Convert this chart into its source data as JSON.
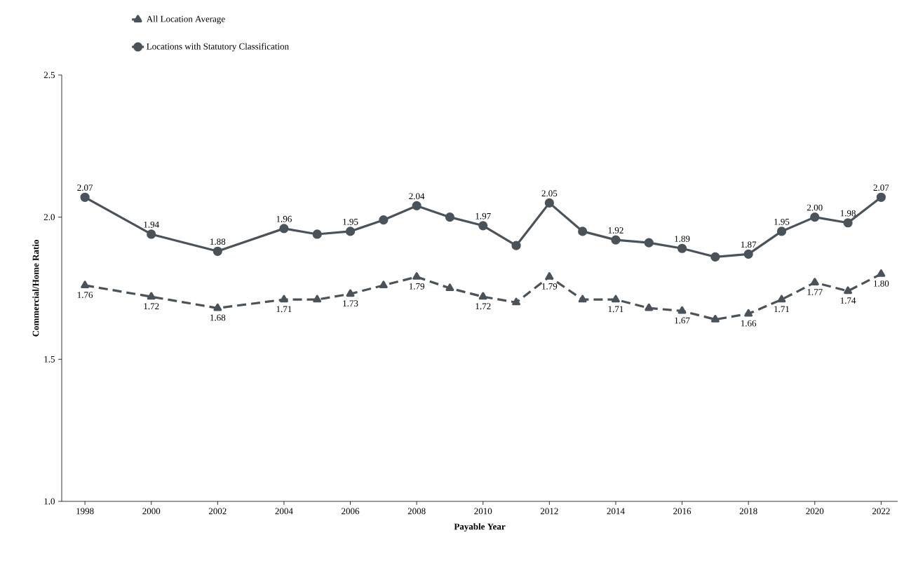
{
  "chart_data": {
    "type": "line",
    "xlabel": "Payable Year",
    "ylabel": "Commercial/Home Ratio",
    "x": [
      1998,
      2000,
      2002,
      2004,
      2005,
      2006,
      2007,
      2008,
      2009,
      2010,
      2011,
      2012,
      2013,
      2014,
      2015,
      2016,
      2017,
      2018,
      2019,
      2020,
      2021,
      2022
    ],
    "series": [
      {
        "name": "All Location Average",
        "color": "#4a525a",
        "line_style": "dashed",
        "marker": "triangle",
        "values": [
          1.76,
          1.72,
          1.68,
          1.71,
          1.71,
          1.73,
          1.76,
          1.79,
          1.75,
          1.72,
          1.7,
          1.79,
          1.71,
          1.71,
          1.68,
          1.67,
          1.64,
          1.66,
          1.71,
          1.77,
          1.74,
          1.8
        ],
        "value_labels": [
          "1.76",
          "1.72",
          "1.68",
          "1.71",
          null,
          "1.73",
          null,
          "1.79",
          null,
          "1.72",
          null,
          "1.79",
          null,
          "1.71",
          null,
          "1.67",
          null,
          "1.66",
          "1.71",
          "1.77",
          "1.74",
          "1.80"
        ]
      },
      {
        "name": "Locations with Statutory Classification",
        "color": "#4a525a",
        "line_style": "solid",
        "marker": "circle",
        "values": [
          2.07,
          1.94,
          1.88,
          1.96,
          1.94,
          1.95,
          1.99,
          2.04,
          2.0,
          1.97,
          1.9,
          2.05,
          1.95,
          1.92,
          1.91,
          1.89,
          1.86,
          1.87,
          1.95,
          2.0,
          1.98,
          2.07
        ],
        "value_labels": [
          "2.07",
          "1.94",
          "1.88",
          "1.96",
          null,
          "1.95",
          null,
          "2.04",
          null,
          "1.97",
          null,
          "2.05",
          null,
          "1.92",
          null,
          "1.89",
          null,
          "1.87",
          "1.95",
          "2.00",
          "1.98",
          "2.07"
        ]
      }
    ],
    "xlim": [
      1997.3,
      2022.5
    ],
    "ylim": [
      1.0,
      2.5
    ],
    "xticks": [
      1998,
      2000,
      2002,
      2004,
      2006,
      2008,
      2010,
      2012,
      2014,
      2016,
      2018,
      2020,
      2022
    ],
    "yticks": [
      {
        "value": 1.0,
        "label": "1.0"
      },
      {
        "value": 1.5,
        "label": "1.5"
      },
      {
        "value": 2.0,
        "label": "2.0"
      },
      {
        "value": 2.5,
        "label": "2.5"
      }
    ],
    "grid": false,
    "legend": "top left"
  }
}
